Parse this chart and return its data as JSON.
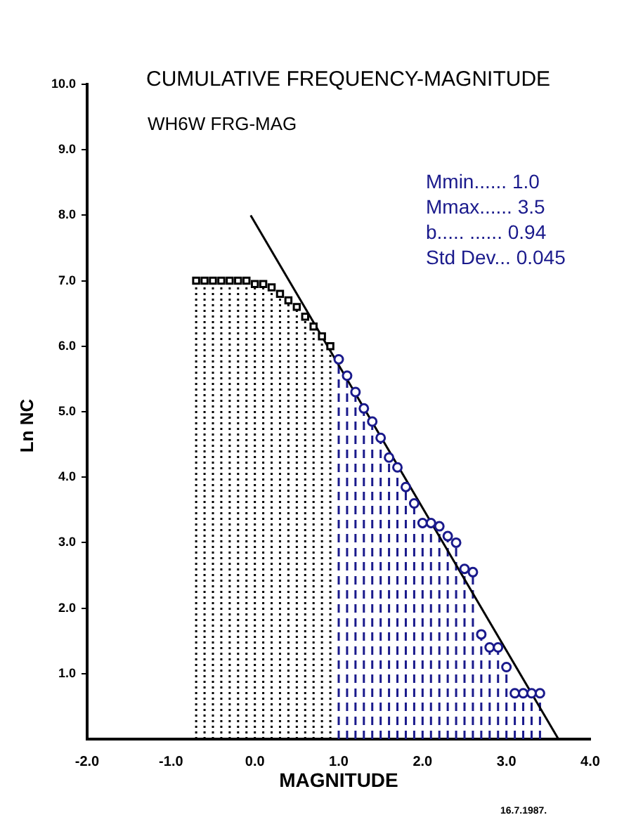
{
  "chart_data": {
    "type": "lollipop",
    "title": "CUMULATIVE FREQUENCY-MAGNITUDE",
    "subtitle": "WH6W FRG-MAG",
    "xlabel": "MAGNITUDE",
    "ylabel": "Ln NC",
    "annotations": [
      "Mmin...... 1.0",
      "Mmax...... 3.5",
      "b..... ...... 0.94",
      "Std Dev... 0.045",
      "16.7.1987."
    ],
    "xlim": [
      -2,
      4
    ],
    "xticks": [
      {
        "value": -2,
        "label": "-2.0"
      },
      {
        "value": -1,
        "label": "-1.0"
      },
      {
        "value": 0,
        "label": "0.0"
      },
      {
        "value": 1,
        "label": "1.0"
      },
      {
        "value": 2,
        "label": "2.0"
      },
      {
        "value": 3,
        "label": "3.0"
      },
      {
        "value": 4,
        "label": "4.0"
      }
    ],
    "ylim": [
      0,
      10
    ],
    "yticks": [
      {
        "value": 1,
        "label": "1.0"
      },
      {
        "value": 2,
        "label": "2.0"
      },
      {
        "value": 3,
        "label": "3.0"
      },
      {
        "value": 4,
        "label": "4.0"
      },
      {
        "value": 5,
        "label": "5.0"
      },
      {
        "value": 6,
        "label": "6.0"
      },
      {
        "value": 7,
        "label": "7.0"
      },
      {
        "value": 8,
        "label": "8.0"
      },
      {
        "value": 9,
        "label": "9.0"
      },
      {
        "value": 10,
        "label": "10.0"
      }
    ],
    "grid": false,
    "legend": false,
    "series": [
      {
        "color": "#000000",
        "marker": "square",
        "line_style": "dotted",
        "x": [
          -0.7,
          -0.6,
          -0.5,
          -0.4,
          -0.3,
          -0.2,
          -0.1,
          0.0,
          0.1,
          0.2,
          0.3,
          0.4,
          0.5,
          0.6,
          0.7,
          0.8,
          0.9
        ],
        "values": [
          7.0,
          7.0,
          7.0,
          7.0,
          7.0,
          7.0,
          7.0,
          6.95,
          6.95,
          6.9,
          6.8,
          6.7,
          6.6,
          6.45,
          6.3,
          6.15,
          6.0
        ]
      },
      {
        "color": "#1a1a8c",
        "marker": "circle",
        "line_style": "dashed",
        "x": [
          1.0,
          1.1,
          1.2,
          1.3,
          1.4,
          1.5,
          1.6,
          1.7,
          1.8,
          1.9,
          2.0,
          2.1,
          2.2,
          2.3,
          2.4,
          2.5,
          2.6,
          2.7,
          2.8,
          2.9,
          3.0,
          3.1,
          3.2,
          3.3,
          3.4
        ],
        "values": [
          5.8,
          5.55,
          5.3,
          5.05,
          4.85,
          4.6,
          4.3,
          4.15,
          3.85,
          3.6,
          3.3,
          3.3,
          3.25,
          3.1,
          3.0,
          2.6,
          2.55,
          1.6,
          1.4,
          1.4,
          1.1,
          0.7,
          0.7,
          0.7,
          0.7
        ]
      },
      {
        "type": "line",
        "color": "#000000",
        "marker": "none",
        "line_style": "solid",
        "x": [
          -0.05,
          3.62
        ],
        "values": [
          8.0,
          0.0
        ]
      }
    ]
  }
}
